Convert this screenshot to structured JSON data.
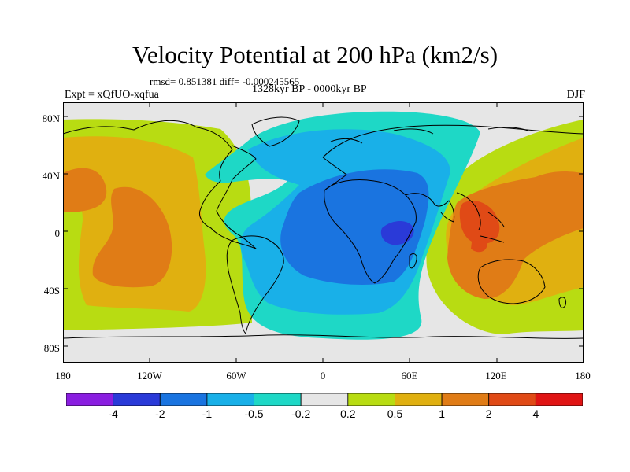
{
  "title": "Velocity Potential at 200 hPa (km2/s)",
  "stats": "rmsd= 0.851381 diff= -0.000245565",
  "period": "1328kyr BP - 0000kyr BP",
  "experiment": "Expt = xQfUO-xqfua",
  "season": "DJF",
  "lat_labels": [
    "80N",
    "40N",
    "0",
    "40S",
    "80S"
  ],
  "lon_labels": [
    "180",
    "120W",
    "60W",
    "0",
    "60E",
    "120E",
    "180"
  ],
  "colorbar": {
    "labels": [
      "-4",
      "-2",
      "-1",
      "-0.5",
      "-0.2",
      "0.2",
      "0.5",
      "1",
      "2",
      "4"
    ],
    "colors": [
      "#8a1ee0",
      "#2a3ad8",
      "#1a74e0",
      "#19b0e8",
      "#1ed8c6",
      "#e6e6e6",
      "#b8dc12",
      "#e0b010",
      "#e07c16",
      "#e04a16",
      "#e01414"
    ]
  },
  "field_colors": {
    "neutral": "#e6e6e6",
    "lt_neg": "#1ed8c6",
    "mid_neg": "#19b0e8",
    "neg": "#1a74e0",
    "strong_neg": "#2a3ad8",
    "lt_pos": "#b8dc12",
    "mid_pos": "#e0b010",
    "pos": "#e07c16",
    "strong_pos": "#e04a16"
  }
}
